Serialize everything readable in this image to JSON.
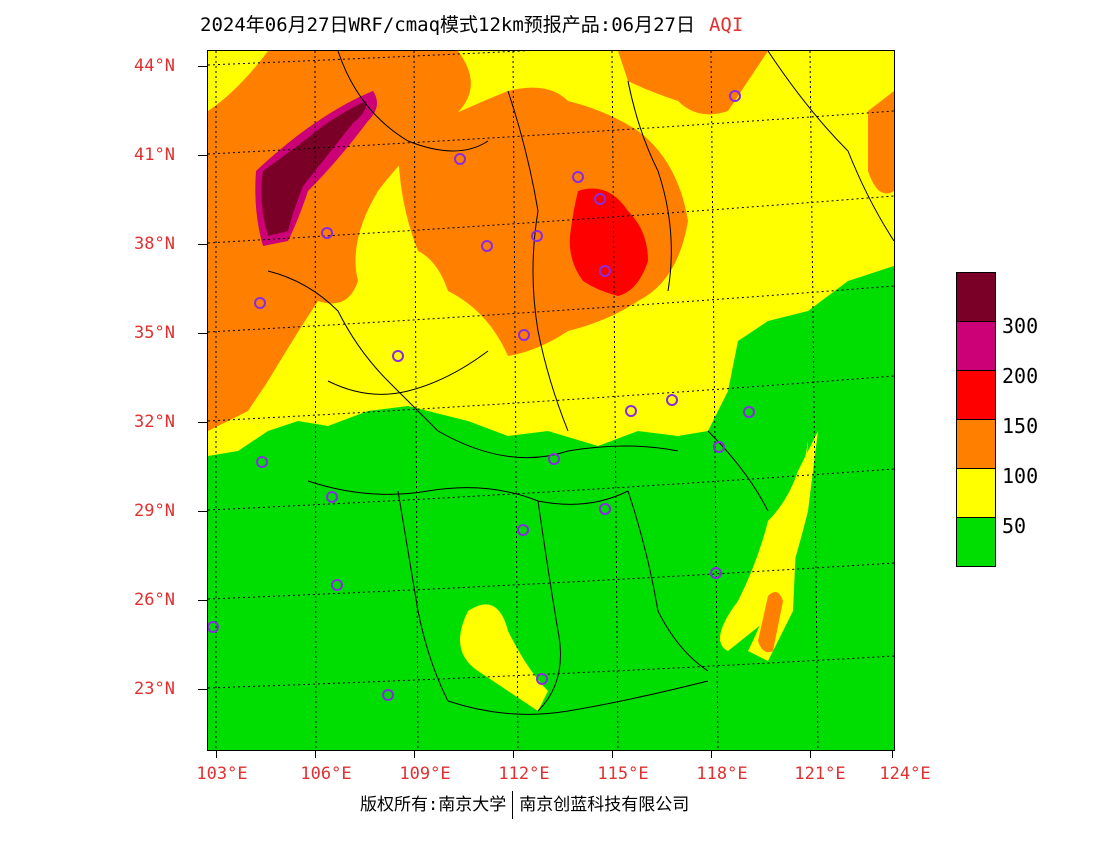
{
  "title": {
    "main": "2024年06月27日WRF/cmaq模式12km预报产品:06月27日",
    "variable": "AQI"
  },
  "axes": {
    "lat_labels": [
      "44°N",
      "41°N",
      "38°N",
      "35°N",
      "32°N",
      "29°N",
      "26°N",
      "23°N"
    ],
    "lon_labels": [
      "103°E",
      "106°E",
      "109°E",
      "112°E",
      "115°E",
      "118°E",
      "121°E",
      "124°E"
    ]
  },
  "legend": {
    "labels": [
      "300",
      "200",
      "150",
      "100",
      "50"
    ],
    "colors": [
      "#7a0028",
      "#cc0077",
      "#ff0000",
      "#ff7f00",
      "#ffff00",
      "#00dd00"
    ]
  },
  "footer": {
    "left": "版权所有:南京大学",
    "right": "南京创蓝科技有限公司"
  },
  "colors": {
    "green": "#00dd00",
    "yellow": "#ffff00",
    "orange": "#ff7f00",
    "red": "#ff0000",
    "magenta": "#cc0077",
    "maroon": "#7a0028",
    "label_red": "#e03030",
    "station_marker": "#8a2be2"
  }
}
